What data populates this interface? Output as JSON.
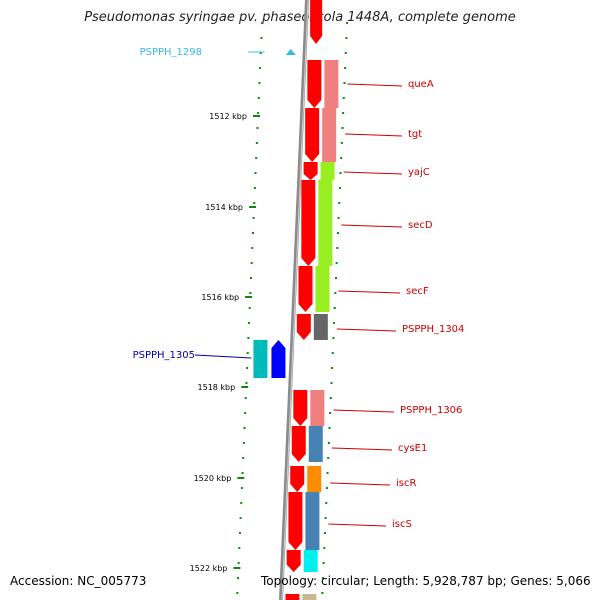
{
  "title": "Pseudomonas syringae pv. phaseolicola 1448A, complete genome",
  "footer": {
    "accession": "Accession: NC_005773",
    "topology": "Topology: circular; Length: 5,928,787 bp; Genes: 5,066"
  },
  "ticks": [
    "1512 kbp",
    "1514 kbp",
    "1516 kbp",
    "1518 kbp",
    "1520 kbp",
    "1522 kbp"
  ],
  "genes": [
    {
      "name": "PSPPH_1298",
      "strand": "-",
      "color": "#33bbee",
      "label_color": "#33bbee"
    },
    {
      "name": "queA",
      "strand": "+",
      "color": "#ff0000",
      "cog_color": "#f08080",
      "label_color": "#cc0000"
    },
    {
      "name": "tgt",
      "strand": "+",
      "color": "#ff0000",
      "cog_color": "#f08080",
      "label_color": "#cc0000"
    },
    {
      "name": "yajC",
      "strand": "+",
      "color": "#ff0000",
      "cog_color": "#99ee22",
      "label_color": "#cc0000"
    },
    {
      "name": "secD",
      "strand": "+",
      "color": "#ff0000",
      "cog_color": "#99ee22",
      "label_color": "#cc0000"
    },
    {
      "name": "secF",
      "strand": "+",
      "color": "#ff0000",
      "cog_color": "#99ee22",
      "label_color": "#cc0000"
    },
    {
      "name": "PSPPH_1304",
      "strand": "+",
      "color": "#ff0000",
      "cog_color": "#666666",
      "label_color": "#cc0000"
    },
    {
      "name": "PSPPH_1305",
      "strand": "-",
      "color": "#0000ff",
      "cog_color": "#00bbbb",
      "label_color": "#0000aa"
    },
    {
      "name": "PSPPH_1306",
      "strand": "+",
      "color": "#ff0000",
      "cog_color": "#f08080",
      "label_color": "#cc0000"
    },
    {
      "name": "cysE1",
      "strand": "+",
      "color": "#ff0000",
      "cog_color": "#4682b4",
      "label_color": "#cc0000"
    },
    {
      "name": "iscR",
      "strand": "+",
      "color": "#ff0000",
      "cog_color": "#ff8c00",
      "label_color": "#cc0000"
    },
    {
      "name": "iscS",
      "strand": "+",
      "color": "#ff0000",
      "cog_color": "#4682b4",
      "label_color": "#cc0000"
    },
    {
      "name": "",
      "strand": "+",
      "color": "#ff0000",
      "cog_color": "#00eeee",
      "label_color": "#cc0000"
    }
  ]
}
